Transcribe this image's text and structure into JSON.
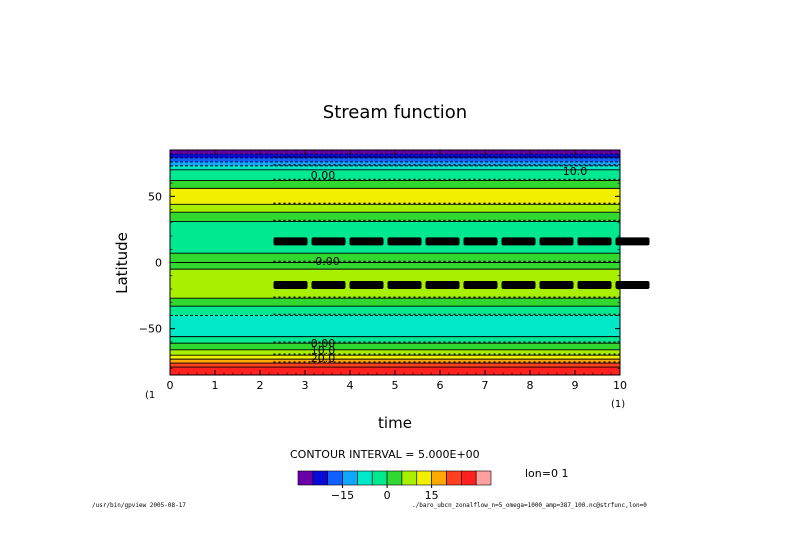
{
  "chart_data": {
    "type": "heatmap",
    "title": "Stream function",
    "xlabel": "time",
    "ylabel": "Latitude",
    "xlim": [
      0,
      10
    ],
    "ylim": [
      -85,
      85
    ],
    "x_ticks": [
      "0",
      "1",
      "2",
      "3",
      "4",
      "5",
      "6",
      "7",
      "8",
      "9",
      "10"
    ],
    "y_ticks": [
      "50",
      "0",
      "−50"
    ],
    "y_tick_values": [
      50,
      0,
      -50
    ],
    "x_start_index": "(1",
    "x_end_index": "(1)",
    "contour_interval_label": "CONTOUR INTERVAL = 5.000E+00",
    "lon_label": "lon=0 1",
    "contour_labels": [
      "0.00",
      "0.00",
      "0.00",
      "10.0",
      "20.0",
      "10.0"
    ],
    "colorbar": {
      "ticks": [
        "−15",
        "0",
        "15"
      ],
      "tick_values": [
        -15,
        0,
        15
      ],
      "levels": [
        -25,
        -20,
        -15,
        -10,
        -5,
        0,
        5,
        10,
        15,
        20,
        25,
        30
      ],
      "colors": [
        "#6a00aa",
        "#0a0ad8",
        "#1060ff",
        "#10a8ff",
        "#00e8c8",
        "#00e890",
        "#30d830",
        "#a8f000",
        "#f0f000",
        "#ffa800",
        "#ff4020",
        "#ff2020",
        "#ffa0a0"
      ]
    },
    "latitude_bands": [
      {
        "lat_from": 85,
        "lat_to": 82,
        "value": -25
      },
      {
        "lat_from": 82,
        "lat_to": 79,
        "value": -20
      },
      {
        "lat_from": 79,
        "lat_to": 76,
        "value": -15
      },
      {
        "lat_from": 76,
        "lat_to": 73,
        "value": -10
      },
      {
        "lat_from": 73,
        "lat_to": 70,
        "value": -5
      },
      {
        "lat_from": 70,
        "lat_to": 62,
        "value": 0
      },
      {
        "lat_from": 62,
        "lat_to": 56,
        "value": 5
      },
      {
        "lat_from": 56,
        "lat_to": 44,
        "value": 15
      },
      {
        "lat_from": 44,
        "lat_to": 38,
        "value": 10
      },
      {
        "lat_from": 38,
        "lat_to": 31,
        "value": 5
      },
      {
        "lat_from": 31,
        "lat_to": 7,
        "value": 0
      },
      {
        "lat_from": 7,
        "lat_to": 0,
        "value": 5
      },
      {
        "lat_from": 0,
        "lat_to": -5,
        "value": 5
      },
      {
        "lat_from": -5,
        "lat_to": -27,
        "value": 10
      },
      {
        "lat_from": -27,
        "lat_to": -33,
        "value": 5
      },
      {
        "lat_from": -33,
        "lat_to": -40,
        "value": 0
      },
      {
        "lat_from": -40,
        "lat_to": -56,
        "value": -5
      },
      {
        "lat_from": -56,
        "lat_to": -61,
        "value": 0
      },
      {
        "lat_from": -61,
        "lat_to": -66,
        "value": 5
      },
      {
        "lat_from": -66,
        "lat_to": -70,
        "value": 10
      },
      {
        "lat_from": -70,
        "lat_to": -73,
        "value": 15
      },
      {
        "lat_from": -73,
        "lat_to": -76,
        "value": 20
      },
      {
        "lat_from": -76,
        "lat_to": -79,
        "value": 25
      },
      {
        "lat_from": -79,
        "lat_to": -85,
        "value": 30
      }
    ],
    "vortex_bands_lat": [
      16,
      -17
    ],
    "vortex_start_time": 2.3
  },
  "footer": {
    "left": "/usr/bin/gpview  2005-08-17",
    "right": "./baro_ubcn_zonalflow_n=5_omega=1000_amp=387_100.nc@strfunc,lon=0"
  }
}
